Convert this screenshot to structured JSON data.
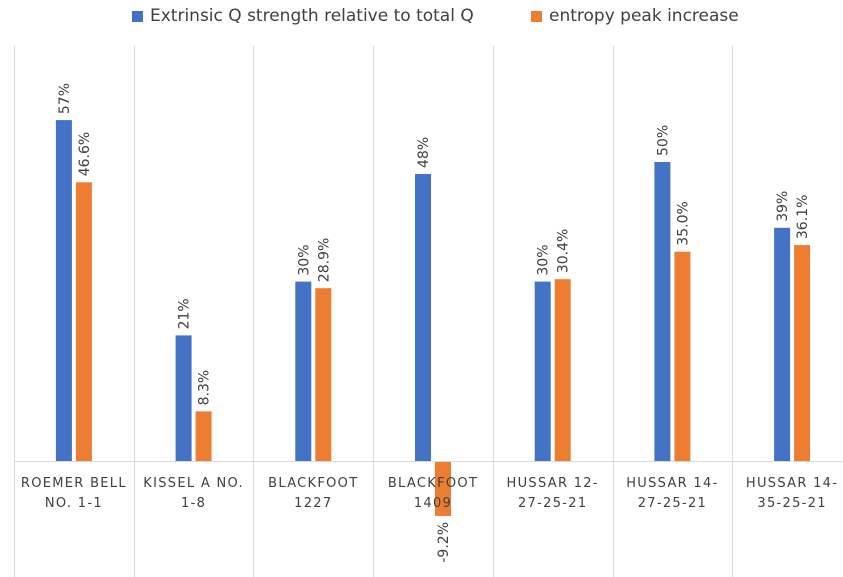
{
  "chart_data": {
    "type": "bar",
    "categories": [
      [
        "ROEMER BELL",
        "NO. 1-1"
      ],
      [
        "KISSEL A NO.",
        "1-8"
      ],
      [
        "BLACKFOOT",
        "1227"
      ],
      [
        "BLACKFOOT",
        "1409"
      ],
      [
        "HUSSAR 12-",
        "27-25-21"
      ],
      [
        "HUSSAR 14-",
        "27-25-21"
      ],
      [
        "HUSSAR 14-",
        "35-25-21"
      ]
    ],
    "series": [
      {
        "name": "Extrinsic Q strength relative to total Q",
        "color": "#4472C4",
        "values": [
          57,
          21,
          30,
          48,
          30,
          50,
          39
        ],
        "labels": [
          "57%",
          "21%",
          "30%",
          "48%",
          "30%",
          "50%",
          "39%"
        ]
      },
      {
        "name": "entropy peak increase",
        "color": "#ED7D31",
        "values": [
          46.6,
          8.3,
          28.9,
          -9.2,
          30.4,
          35.0,
          36.1
        ],
        "labels": [
          "46.6%",
          "8.3%",
          "28.9%",
          "-9.2%",
          "30.4%",
          "35.0%",
          "36.1%"
        ]
      }
    ],
    "ylim": [
      -15,
      65
    ],
    "grid": "vertical category dividers",
    "legend_position": "top"
  }
}
